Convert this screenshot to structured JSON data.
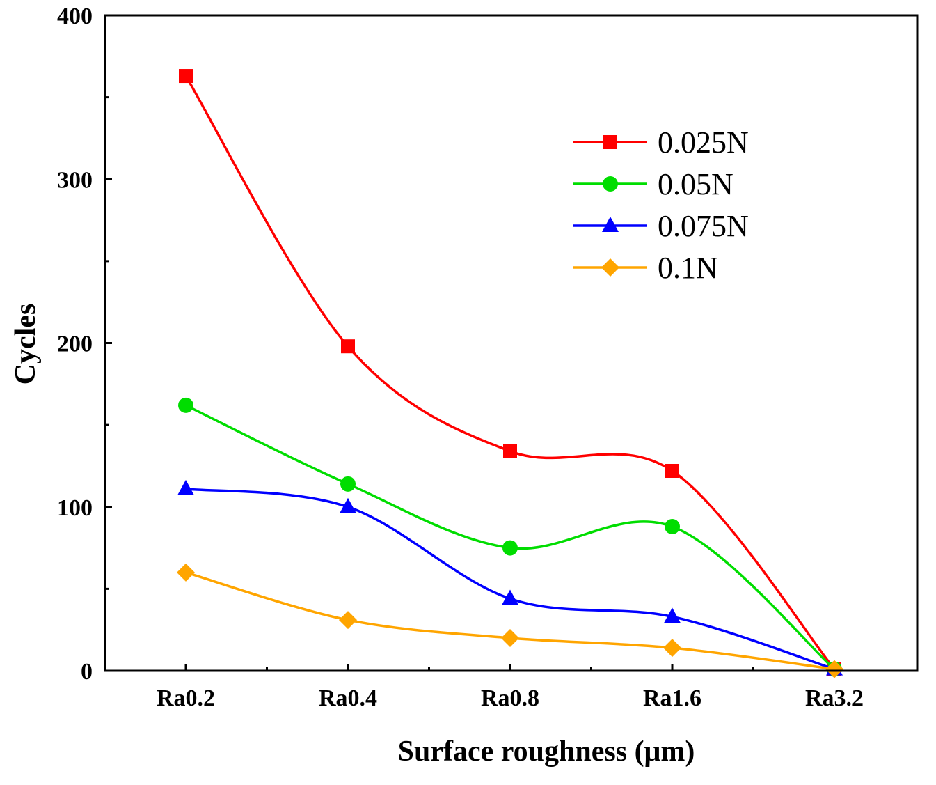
{
  "chart_data": {
    "type": "line",
    "title": "",
    "xlabel": "Surface roughness (μm)",
    "ylabel": "Cycles",
    "categories": [
      "Ra0.2",
      "Ra0.4",
      "Ra0.8",
      "Ra1.6",
      "Ra3.2"
    ],
    "ylim": [
      0,
      400
    ],
    "yticks": [
      "0",
      "100",
      "200",
      "300",
      "400"
    ],
    "legend_position": "top-right",
    "smooth": true,
    "series": [
      {
        "name": "0.025N",
        "color": "#ff0000",
        "marker": "square",
        "values": [
          363,
          198,
          134,
          122,
          1
        ]
      },
      {
        "name": "0.05N",
        "color": "#00dd00",
        "marker": "circle",
        "values": [
          162,
          114,
          75,
          88,
          1
        ]
      },
      {
        "name": "0.075N",
        "color": "#0000ff",
        "marker": "triangle",
        "values": [
          111,
          100,
          44,
          33,
          1
        ]
      },
      {
        "name": "0.1N",
        "color": "#ffa500",
        "marker": "diamond",
        "values": [
          60,
          31,
          20,
          14,
          1
        ]
      }
    ]
  }
}
